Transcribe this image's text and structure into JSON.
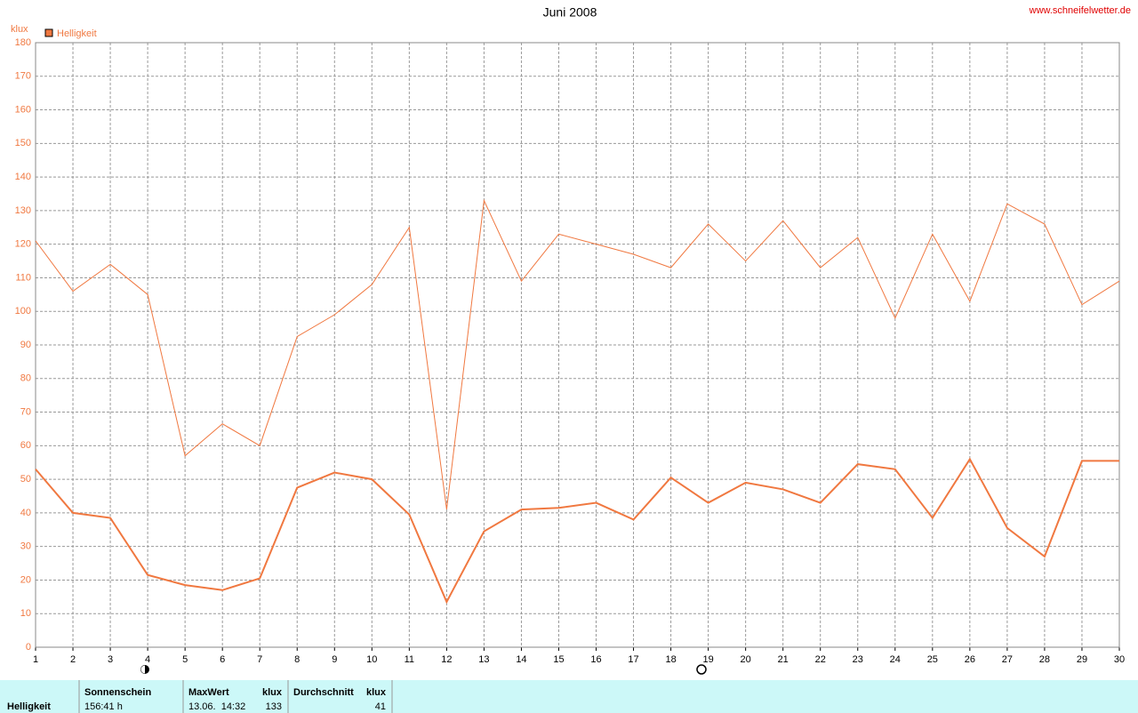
{
  "chart_data": {
    "type": "line",
    "title": "Juni 2008",
    "source": "www.schneifelwetter.de",
    "y_label": "klux",
    "legend": "Helligkeit",
    "color": "#f07840",
    "grid": true,
    "x": [
      1,
      2,
      3,
      4,
      5,
      6,
      7,
      8,
      9,
      10,
      11,
      12,
      13,
      14,
      15,
      16,
      17,
      18,
      19,
      20,
      21,
      22,
      23,
      24,
      25,
      26,
      27,
      28,
      29,
      30
    ],
    "xlim": [
      1,
      30
    ],
    "xticks": [
      1,
      2,
      3,
      4,
      5,
      6,
      7,
      8,
      9,
      10,
      11,
      12,
      13,
      14,
      15,
      16,
      17,
      18,
      19,
      20,
      21,
      22,
      23,
      24,
      25,
      26,
      27,
      28,
      29,
      30
    ],
    "ylim": [
      0,
      180
    ],
    "yticks": [
      0,
      10,
      20,
      30,
      40,
      50,
      60,
      70,
      80,
      90,
      100,
      110,
      120,
      130,
      140,
      150,
      160,
      170,
      180
    ],
    "series": [
      {
        "color": "#f07840",
        "width": 1,
        "values": [
          121,
          106,
          114,
          105,
          57,
          66.5,
          60,
          92.5,
          99,
          108,
          125,
          41,
          133,
          109,
          123,
          120,
          117,
          113,
          126,
          115,
          127,
          113,
          122,
          98,
          123,
          103,
          132,
          126,
          102,
          109
        ]
      },
      {
        "color": "#f07840",
        "width": 2,
        "values": [
          53,
          40,
          38.5,
          21.5,
          18.5,
          17,
          20.5,
          47.5,
          52,
          50,
          39.5,
          13.5,
          34.5,
          41,
          41.5,
          43,
          38,
          50.5,
          43,
          49,
          47,
          43,
          54.5,
          53,
          38.5,
          56,
          35.5,
          27,
          55.5,
          55.5
        ]
      }
    ]
  },
  "table": {
    "row_label": "Helligkeit",
    "headers": [
      "Sonnenschein",
      "MaxWert",
      "klux",
      "Durchschnitt",
      "klux"
    ],
    "values": [
      "156:41 h",
      "13.06.  14:32",
      "133",
      "41"
    ]
  }
}
